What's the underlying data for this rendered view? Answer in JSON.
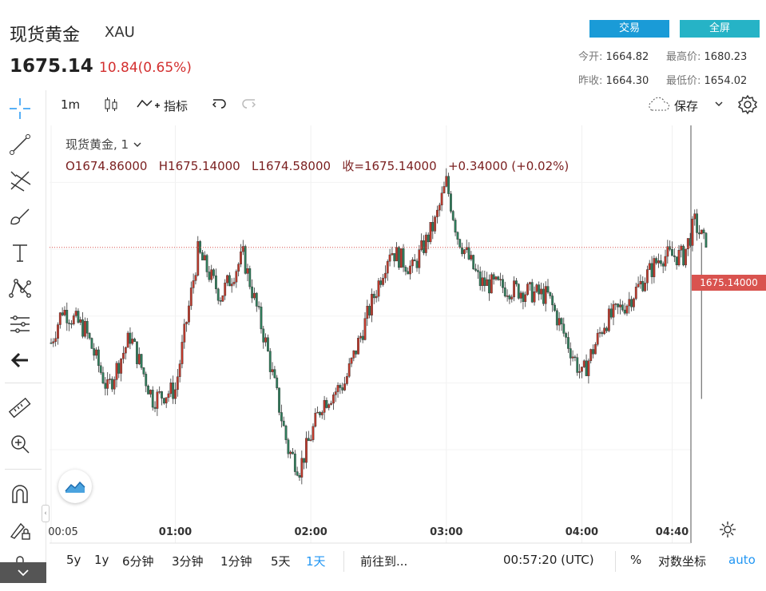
{
  "header": {
    "title": "现货黄金",
    "symbol": "XAU",
    "last_price": "1675.14",
    "change": "10.84(0.65%)",
    "trade_button": "交易",
    "fullscreen_button": "全屏",
    "open_label": "今开:",
    "open_value": "1664.82",
    "high_label": "最高价:",
    "high_value": "1680.23",
    "prev_close_label": "昨收:",
    "prev_close_value": "1664.30",
    "low_label": "最低价:",
    "low_value": "1654.02"
  },
  "toolbar": {
    "interval": "1m",
    "indicators": "指标",
    "save": "保存"
  },
  "legend": {
    "series_title": "现货黄金, 1",
    "open": "O1674.86000",
    "high": "H1675.14000",
    "low": "L1674.58000",
    "close": "收=1675.14000",
    "change": "+0.34000 (+0.02%)"
  },
  "bottom_bar": {
    "ranges": [
      "5y",
      "1y",
      "6分钟",
      "3分钟",
      "1分钟",
      "5天",
      "1天"
    ],
    "active_range": "1天",
    "goto": "前往到...",
    "clock": "00:57:20 (UTC)",
    "percent": "%",
    "log": "对数坐标",
    "auto": "auto"
  },
  "colors": {
    "up": "#c0392b",
    "down": "#2e7d5b",
    "accent": "#2196f3",
    "price_label_bg": "#d9534f"
  },
  "chart_data": {
    "type": "candlestick",
    "x_ticks": [
      "00:05",
      "01:00",
      "02:00",
      "03:00",
      "04:00",
      "04:40"
    ],
    "last_price_label": "1675.14000",
    "last_price": 1675.14,
    "approx_close_path": [
      [
        "00:05",
        1668.0
      ],
      [
        "00:10",
        1670.5
      ],
      [
        "00:20",
        1669.0
      ],
      [
        "00:30",
        1664.5
      ],
      [
        "00:40",
        1668.5
      ],
      [
        "00:50",
        1663.8
      ],
      [
        "01:00",
        1664.5
      ],
      [
        "01:10",
        1674.8
      ],
      [
        "01:20",
        1671.5
      ],
      [
        "01:30",
        1674.5
      ],
      [
        "01:40",
        1668.0
      ],
      [
        "01:50",
        1660.0
      ],
      [
        "01:55",
        1658.6
      ],
      [
        "02:05",
        1663.5
      ],
      [
        "02:15",
        1665.0
      ],
      [
        "02:25",
        1670.0
      ],
      [
        "02:35",
        1675.0
      ],
      [
        "02:45",
        1673.5
      ],
      [
        "02:55",
        1677.0
      ],
      [
        "03:00",
        1680.0
      ],
      [
        "03:05",
        1676.0
      ],
      [
        "03:15",
        1672.5
      ],
      [
        "03:30",
        1672.0
      ],
      [
        "03:45",
        1671.5
      ],
      [
        "04:00",
        1665.5
      ],
      [
        "04:10",
        1669.5
      ],
      [
        "04:20",
        1671.0
      ],
      [
        "04:35",
        1674.5
      ],
      [
        "04:45",
        1674.5
      ],
      [
        "04:50",
        1677.0
      ],
      [
        "04:55",
        1675.14
      ]
    ]
  }
}
